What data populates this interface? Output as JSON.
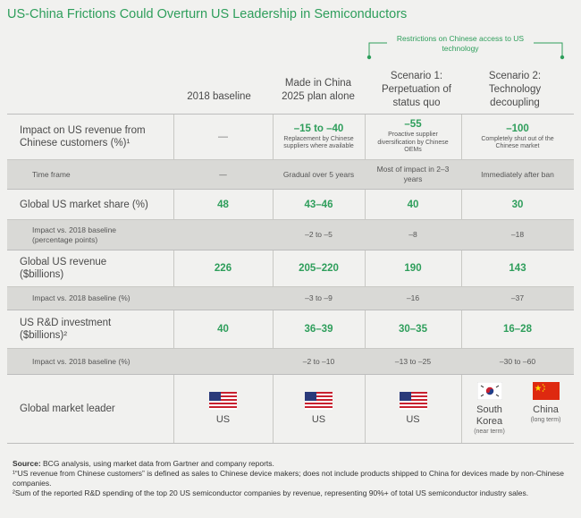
{
  "title": "US-China Frictions Could Overturn US Leadership in Semiconductors",
  "bracket_label": "Restrictions on Chinese access to US technology",
  "columns": [
    "2018 baseline",
    "Made in China 2025 plan alone",
    "Scenario 1: Perpetuation of status quo",
    "Scenario 2: Technology decoupling"
  ],
  "rows": {
    "impact_revenue": {
      "label": "Impact on US revenue from Chinese customers (%)¹",
      "baseline": "—",
      "mic": {
        "value": "–15 to –40",
        "note": "Replacement by Chinese suppliers where available"
      },
      "s1": {
        "value": "–55",
        "note": "Proactive supplier diversification by Chinese OEMs"
      },
      "s2": {
        "value": "–100",
        "note": "Completely shut out of the Chinese market"
      }
    },
    "time_frame": {
      "label": "Time frame",
      "baseline": "—",
      "mic": "Gradual over 5 years",
      "s1": "Most of impact in 2–3 years",
      "s2": "Immediately after ban"
    },
    "market_share": {
      "label": "Global US market share (%)",
      "baseline": "48",
      "mic": "43–46",
      "s1": "40",
      "s2": "30"
    },
    "market_share_impact": {
      "label": "Impact vs. 2018 baseline (percentage points)",
      "mic": "–2 to –5",
      "s1": "–8",
      "s2": "–18"
    },
    "revenue": {
      "label": "Global US revenue ($billions)",
      "baseline": "226",
      "mic": "205–220",
      "s1": "190",
      "s2": "143"
    },
    "revenue_impact": {
      "label": "Impact vs. 2018 baseline (%)",
      "mic": "–3 to –9",
      "s1": "–16",
      "s2": "–37"
    },
    "rd": {
      "label": "US R&D investment ($billions)²",
      "baseline": "40",
      "mic": "36–39",
      "s1": "30–35",
      "s2": "16–28"
    },
    "rd_impact": {
      "label": "Impact vs. 2018 baseline (%)",
      "mic": "–2 to –10",
      "s1": "–13 to –25",
      "s2": "–30 to –60"
    },
    "leader": {
      "label": "Global market leader",
      "baseline": "US",
      "mic": "US",
      "s1": "US",
      "s2_a": {
        "name": "South Korea",
        "note": "(near term)"
      },
      "s2_b": {
        "name": "China",
        "note": "(long term)"
      }
    }
  },
  "footer": {
    "source_label": "Source:",
    "source": " BCG analysis, using market data from Gartner and company reports.",
    "note1": "¹“US revenue from Chinese customers” is defined as sales to Chinese device makers; does not include products shipped to China for devices made by non-Chinese companies.",
    "note2": "²Sum of the reported R&D spending of the top 20 US semiconductor companies by revenue, representing 90%+ of total US semiconductor industry sales."
  }
}
